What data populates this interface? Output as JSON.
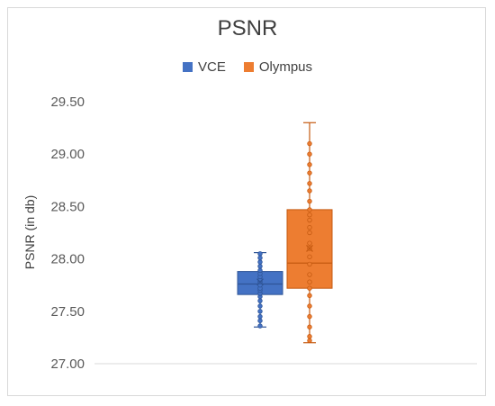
{
  "chart_data": {
    "type": "box",
    "title": "PSNR",
    "xlabel": "",
    "ylabel": "PSNR (in db)",
    "ylim": [
      27.0,
      29.5
    ],
    "yticks": [
      "27.00",
      "27.50",
      "28.00",
      "28.50",
      "29.00",
      "29.50"
    ],
    "grid": false,
    "legend_position": "top",
    "series": [
      {
        "name": "VCE",
        "color": "#4472c4",
        "min": 27.35,
        "q1": 27.66,
        "median": 27.76,
        "q3": 27.88,
        "max": 28.06,
        "mean": 27.78,
        "points": [
          27.36,
          27.41,
          27.45,
          27.5,
          27.55,
          27.6,
          27.64,
          27.67,
          27.7,
          27.72,
          27.75,
          27.78,
          27.8,
          27.83,
          27.86,
          27.89,
          27.93,
          27.97,
          28.01,
          28.05
        ]
      },
      {
        "name": "Olympus",
        "color": "#ed7d31",
        "min": 27.2,
        "q1": 27.72,
        "median": 27.96,
        "q3": 28.47,
        "max": 29.3,
        "mean": 28.1,
        "points": [
          27.22,
          27.26,
          27.35,
          27.45,
          27.55,
          27.65,
          27.72,
          27.78,
          27.85,
          27.95,
          28.02,
          28.1,
          28.15,
          28.25,
          28.3,
          28.37,
          28.42,
          28.47,
          28.55,
          28.65,
          28.72,
          28.82,
          28.9,
          29.0,
          29.1
        ]
      }
    ]
  }
}
